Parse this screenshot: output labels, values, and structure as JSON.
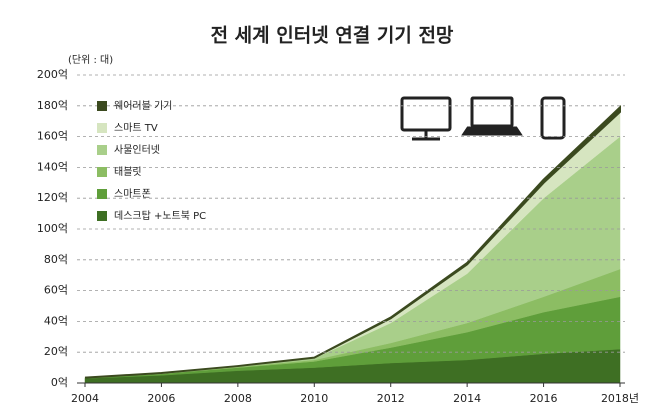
{
  "chart_data": {
    "type": "stacked-area",
    "title": "전 세계 인터넷 연결 기기 전망",
    "unit_label": "(단위 : 대)",
    "x": [
      2004,
      2006,
      2008,
      2010,
      2012,
      2014,
      2016,
      2018
    ],
    "xlim": [
      2004,
      2018
    ],
    "xticks": [
      2004,
      2006,
      2008,
      2010,
      2012,
      2014,
      2016,
      {
        "value": 2018,
        "label": "2018년"
      }
    ],
    "ylim": [
      0,
      200
    ],
    "yticks": [
      {
        "value": 0,
        "label": "0억"
      },
      {
        "value": 20,
        "label": "20억"
      },
      {
        "value": 40,
        "label": "40억"
      },
      {
        "value": 60,
        "label": "60억"
      },
      {
        "value": 80,
        "label": "80억"
      },
      {
        "value": 100,
        "label": "100억"
      },
      {
        "value": 120,
        "label": "120억"
      },
      {
        "value": 140,
        "label": "140억"
      },
      {
        "value": 160,
        "label": "160억"
      },
      {
        "value": 180,
        "label": "180억"
      },
      {
        "value": 200,
        "label": "200억"
      }
    ],
    "grid": true,
    "legend": "upper-left",
    "series": [
      {
        "name": "데스크탑 +노트북 PC",
        "color": "#3e6f23",
        "values": [
          3,
          5,
          8,
          10,
          13,
          15,
          19,
          22
        ]
      },
      {
        "name": "스마트폰",
        "color": "#5f9e3a",
        "values": [
          0.5,
          1,
          2,
          4,
          10,
          18,
          27,
          34
        ]
      },
      {
        "name": "태블릿",
        "color": "#8cbd63",
        "values": [
          0,
          0,
          0.5,
          1,
          3,
          6,
          10,
          18
        ]
      },
      {
        "name": "사물인터넷",
        "color": "#a9cf8a",
        "values": [
          0,
          0.5,
          0.5,
          1,
          13,
          32,
          64,
          86
        ]
      },
      {
        "name": "스마트 TV",
        "color": "#d6e5c0",
        "values": [
          0,
          0,
          0,
          0.5,
          3,
          6,
          10,
          16
        ]
      },
      {
        "name": "웨어러블 기기",
        "color": "#3b4a1f",
        "values": [
          0,
          0,
          0,
          0,
          0.5,
          1,
          2,
          3
        ]
      }
    ]
  }
}
